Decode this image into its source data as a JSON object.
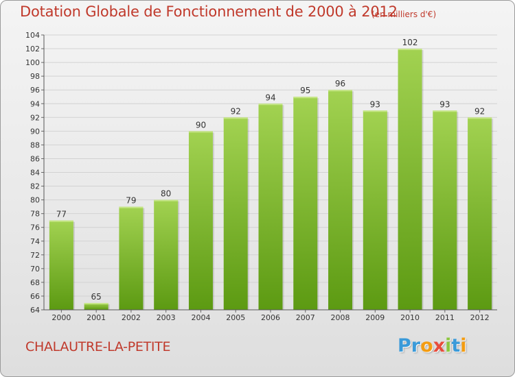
{
  "title": "Dotation Globale de Fonctionnement de 2000 à 2012",
  "unit": "(en milliers d'€)",
  "city": "CHALAUTRE-LA-PETITE",
  "logo": {
    "letters": [
      "P",
      "r",
      "o",
      "x",
      "i",
      "t",
      "i"
    ],
    "colors": [
      "#3a9ad9",
      "#3a9ad9",
      "#f39c12",
      "#e74c3c",
      "#8cc63f",
      "#3a9ad9",
      "#f39c12"
    ]
  },
  "colors": {
    "bar_top": "#a2d251",
    "bar_bottom": "#5c9a12",
    "title": "#c0392b",
    "grid": "#d2d2d2"
  },
  "chart_data": {
    "type": "bar",
    "title": "Dotation Globale de Fonctionnement de 2000 à 2012",
    "ylabel": "",
    "xlabel": "",
    "categories": [
      "2000",
      "2001",
      "2002",
      "2003",
      "2004",
      "2005",
      "2006",
      "2007",
      "2008",
      "2009",
      "2010",
      "2011",
      "2012"
    ],
    "values": [
      77,
      65,
      79,
      80,
      90,
      92,
      94,
      95,
      96,
      93,
      102,
      93,
      92
    ],
    "data_labels": [
      "77",
      "65",
      "79",
      "80",
      "90",
      "92",
      "94",
      "95",
      "96",
      "93",
      "102",
      "93",
      "92"
    ],
    "ylim": [
      64,
      104
    ],
    "yticks": [
      64,
      66,
      68,
      70,
      72,
      74,
      76,
      78,
      80,
      82,
      84,
      86,
      88,
      90,
      92,
      94,
      96,
      98,
      100,
      102,
      104
    ],
    "grid": true,
    "legend": "none"
  }
}
